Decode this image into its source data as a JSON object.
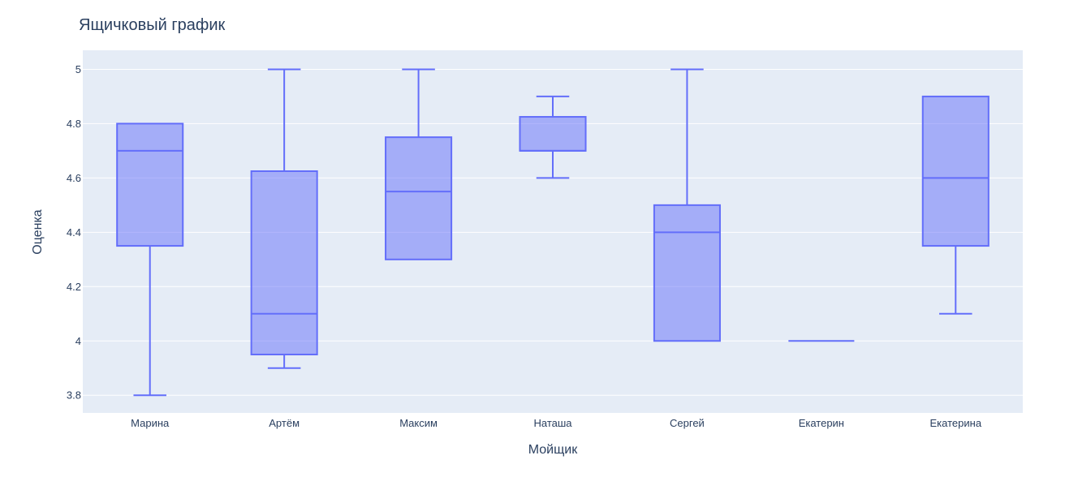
{
  "chart_data": {
    "type": "box",
    "title": "Ящичковый график",
    "xlabel": "Мойщик",
    "ylabel": "Оценка",
    "ylim": [
      3.735,
      5.07
    ],
    "yticks": [
      3.8,
      4,
      4.2,
      4.4,
      4.6,
      4.8,
      5
    ],
    "ytick_labels": [
      "3.8",
      "4",
      "4.2",
      "4.4",
      "4.6",
      "4.8",
      "5"
    ],
    "grid": true,
    "colors": {
      "line": "#636efa",
      "fill": "rgba(99,110,250,0.5)",
      "plot_bg": "#e5ecf6",
      "grid": "#ffffff"
    },
    "categories": [
      "Марина",
      "Артём",
      "Максим",
      "Наташа",
      "Сергей",
      "Екатерин",
      "Екатерина"
    ],
    "boxes": [
      {
        "category": "Марина",
        "min": 3.8,
        "q1": 4.35,
        "median": 4.7,
        "q3": 4.8,
        "max": 4.8
      },
      {
        "category": "Артём",
        "min": 3.9,
        "q1": 3.95,
        "median": 4.1,
        "q3": 4.625,
        "max": 5.0
      },
      {
        "category": "Максим",
        "min": 4.3,
        "q1": 4.3,
        "median": 4.55,
        "q3": 4.75,
        "max": 5.0
      },
      {
        "category": "Наташа",
        "min": 4.6,
        "q1": 4.7,
        "median": 4.7,
        "q3": 4.825,
        "max": 4.9
      },
      {
        "category": "Сергей",
        "min": 4.0,
        "q1": 4.0,
        "median": 4.4,
        "q3": 4.5,
        "max": 5.0
      },
      {
        "category": "Екатерин",
        "min": 4.0,
        "q1": 4.0,
        "median": 4.0,
        "q3": 4.0,
        "max": 4.0
      },
      {
        "category": "Екатерина",
        "min": 4.1,
        "q1": 4.35,
        "median": 4.6,
        "q3": 4.9,
        "max": 4.9
      }
    ]
  }
}
